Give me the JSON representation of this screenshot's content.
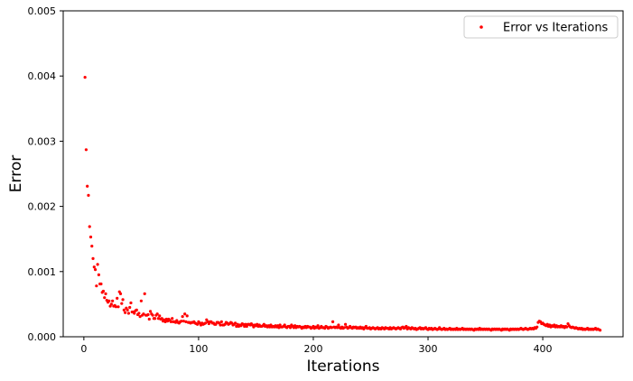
{
  "chart_data": {
    "type": "scatter",
    "xlabel": "Iterations",
    "ylabel": "Error",
    "xlim": [
      -18,
      470
    ],
    "ylim": [
      0,
      0.005
    ],
    "x_ticks": [
      0,
      100,
      200,
      300,
      400
    ],
    "x_tick_labels": [
      "0",
      "100",
      "200",
      "300",
      "400"
    ],
    "y_ticks": [
      0,
      0.001,
      0.002,
      0.003,
      0.004,
      0.005
    ],
    "y_tick_labels": [
      "0.000",
      "0.001",
      "0.002",
      "0.003",
      "0.004",
      "0.005"
    ],
    "grid": false,
    "legend_position": "top-right",
    "series": [
      {
        "name": "Error vs Iterations",
        "color": "#ff0000",
        "x": [
          1,
          2,
          3,
          4,
          5,
          6,
          7,
          8,
          9,
          10,
          11,
          12,
          13,
          14,
          15,
          16,
          17,
          18,
          19,
          20,
          21,
          22,
          23,
          24,
          25,
          26,
          27,
          28,
          29,
          30,
          31,
          32,
          33,
          34,
          35,
          36,
          37,
          38,
          39,
          40,
          41,
          42,
          43,
          44,
          45,
          46,
          47,
          48,
          49,
          50,
          51,
          52,
          53,
          54,
          55,
          56,
          57,
          58,
          59,
          60,
          61,
          62,
          63,
          64,
          65,
          66,
          67,
          68,
          69,
          70,
          71,
          72,
          73,
          74,
          75,
          76,
          77,
          78,
          79,
          80,
          81,
          82,
          83,
          84,
          85,
          86,
          87,
          88,
          89,
          90,
          91,
          92,
          93,
          94,
          95,
          96,
          97,
          98,
          99,
          100,
          101,
          102,
          103,
          104,
          105,
          106,
          107,
          108,
          109,
          110,
          111,
          112,
          113,
          114,
          115,
          116,
          117,
          118,
          119,
          120,
          121,
          122,
          123,
          124,
          125,
          126,
          127,
          128,
          129,
          130,
          131,
          132,
          133,
          134,
          135,
          136,
          137,
          138,
          139,
          140,
          141,
          142,
          143,
          144,
          145,
          146,
          147,
          148,
          149,
          150,
          151,
          152,
          153,
          154,
          155,
          156,
          157,
          158,
          159,
          160,
          161,
          162,
          163,
          164,
          165,
          166,
          167,
          168,
          169,
          170,
          171,
          172,
          173,
          174,
          175,
          176,
          177,
          178,
          179,
          180,
          181,
          182,
          183,
          184,
          185,
          186,
          187,
          188,
          189,
          190,
          191,
          192,
          193,
          194,
          195,
          196,
          197,
          198,
          199,
          200,
          201,
          202,
          203,
          204,
          205,
          206,
          207,
          208,
          209,
          210,
          211,
          212,
          213,
          214,
          215,
          216,
          217,
          218,
          219,
          220,
          221,
          222,
          223,
          224,
          225,
          226,
          227,
          228,
          229,
          230,
          231,
          232,
          233,
          234,
          235,
          236,
          237,
          238,
          239,
          240,
          241,
          242,
          243,
          244,
          245,
          246,
          247,
          248,
          249,
          250,
          251,
          252,
          253,
          254,
          255,
          256,
          257,
          258,
          259,
          260,
          261,
          262,
          263,
          264,
          265,
          266,
          267,
          268,
          269,
          270,
          271,
          272,
          273,
          274,
          275,
          276,
          277,
          278,
          279,
          280,
          281,
          282,
          283,
          284,
          285,
          286,
          287,
          288,
          289,
          290,
          291,
          292,
          293,
          294,
          295,
          296,
          297,
          298,
          299,
          300,
          301,
          302,
          303,
          304,
          305,
          306,
          307,
          308,
          309,
          310,
          311,
          312,
          313,
          314,
          315,
          316,
          317,
          318,
          319,
          320,
          321,
          322,
          323,
          324,
          325,
          326,
          327,
          328,
          329,
          330,
          331,
          332,
          333,
          334,
          335,
          336,
          337,
          338,
          339,
          340,
          341,
          342,
          343,
          344,
          345,
          346,
          347,
          348,
          349,
          350,
          351,
          352,
          353,
          354,
          355,
          356,
          357,
          358,
          359,
          360,
          361,
          362,
          363,
          364,
          365,
          366,
          367,
          368,
          369,
          370,
          371,
          372,
          373,
          374,
          375,
          376,
          377,
          378,
          379,
          380,
          381,
          382,
          383,
          384,
          385,
          386,
          387,
          388,
          389,
          390,
          391,
          392,
          393,
          394,
          395,
          396,
          397,
          398,
          399,
          400,
          401,
          402,
          403,
          404,
          405,
          406,
          407,
          408,
          409,
          410,
          411,
          412,
          413,
          414,
          415,
          416,
          417,
          418,
          419,
          420,
          421,
          422,
          423,
          424,
          425,
          426,
          427,
          428,
          429,
          430,
          431,
          432,
          433,
          434,
          435,
          436,
          437,
          438,
          439,
          440,
          441,
          442,
          443,
          444,
          445,
          446,
          447,
          448,
          449,
          450
        ],
        "y": [
          0.00398,
          0.00287,
          0.00231,
          0.00217,
          0.00169,
          0.00153,
          0.00139,
          0.0012,
          0.00107,
          0.00103,
          0.00078,
          0.00111,
          0.00095,
          0.00081,
          0.00081,
          0.00068,
          0.0007,
          0.0006,
          0.00066,
          0.00056,
          0.00053,
          0.00055,
          0.00047,
          0.0005,
          0.00055,
          0.00047,
          0.00048,
          0.00046,
          0.00059,
          0.00046,
          0.00069,
          0.00066,
          0.00051,
          0.00057,
          0.00041,
          0.00037,
          0.00044,
          0.00041,
          0.00036,
          0.00045,
          0.00052,
          0.00038,
          0.00038,
          0.00036,
          0.0004,
          0.00041,
          0.00034,
          0.00036,
          0.00031,
          0.00055,
          0.00033,
          0.00035,
          0.00066,
          0.00033,
          0.00033,
          0.00034,
          0.00027,
          0.00039,
          0.00035,
          0.00033,
          0.00028,
          0.00028,
          0.00033,
          0.00035,
          0.00028,
          0.00032,
          0.00027,
          0.00028,
          0.00024,
          0.00026,
          0.00023,
          0.00027,
          0.00024,
          0.00027,
          0.00025,
          0.00023,
          0.00028,
          0.00023,
          0.00023,
          0.00022,
          0.00025,
          0.00022,
          0.00021,
          0.00023,
          0.00024,
          0.00031,
          0.00024,
          0.00035,
          0.00023,
          0.00032,
          0.00022,
          0.00022,
          0.00021,
          0.00022,
          0.00022,
          0.00023,
          0.00021,
          0.0002,
          0.00019,
          0.00023,
          0.00021,
          0.00018,
          0.00021,
          0.00019,
          0.0002,
          0.00021,
          0.00026,
          0.00023,
          0.0002,
          0.00023,
          0.00023,
          0.00021,
          0.00021,
          0.00019,
          0.00019,
          0.00022,
          0.00022,
          0.00021,
          0.00018,
          0.00023,
          0.00018,
          0.00018,
          0.00019,
          0.00022,
          0.00021,
          0.00019,
          0.0002,
          0.00022,
          0.00021,
          0.00018,
          0.00019,
          0.00021,
          0.00016,
          0.00019,
          0.00016,
          0.00018,
          0.00017,
          0.0002,
          0.00019,
          0.00016,
          0.00019,
          0.00016,
          0.00019,
          0.00019,
          0.00018,
          0.0002,
          0.00018,
          0.00015,
          0.00018,
          0.00017,
          0.00019,
          0.00016,
          0.00018,
          0.00016,
          0.00016,
          0.00017,
          0.00019,
          0.00016,
          0.00017,
          0.00015,
          0.00017,
          0.00015,
          0.00018,
          0.00015,
          0.00016,
          0.00015,
          0.00017,
          0.00015,
          0.00017,
          0.00014,
          0.00018,
          0.00015,
          0.00015,
          0.00016,
          0.00018,
          0.00015,
          0.00014,
          0.00016,
          0.00016,
          0.00014,
          0.00018,
          0.00016,
          0.00014,
          0.00017,
          0.00014,
          0.00016,
          0.00015,
          0.00016,
          0.00015,
          0.00013,
          0.00015,
          0.00014,
          0.00016,
          0.00014,
          0.00016,
          0.00015,
          0.00015,
          0.00013,
          0.00014,
          0.00016,
          0.00013,
          0.00015,
          0.00014,
          0.00017,
          0.00013,
          0.00014,
          0.00016,
          0.00014,
          0.00014,
          0.00013,
          0.00016,
          0.00015,
          0.00013,
          0.00014,
          0.00015,
          0.00014,
          0.00023,
          0.00015,
          0.00014,
          0.00015,
          0.00014,
          0.00018,
          0.00014,
          0.00013,
          0.00015,
          0.00013,
          0.00014,
          0.00019,
          0.00015,
          0.00013,
          0.00014,
          0.00016,
          0.00014,
          0.00013,
          0.00015,
          0.00014,
          0.00015,
          0.00013,
          0.00014,
          0.00013,
          0.00015,
          0.00013,
          0.00014,
          0.00012,
          0.00014,
          0.00016,
          0.00013,
          0.00013,
          0.00014,
          0.00012,
          0.00013,
          0.00014,
          0.00013,
          0.00012,
          0.00013,
          0.00014,
          0.00012,
          0.00013,
          0.00012,
          0.00014,
          0.00013,
          0.00012,
          0.00014,
          0.00013,
          0.00013,
          0.00012,
          0.00014,
          0.00012,
          0.00013,
          0.00014,
          0.00013,
          0.00012,
          0.00013,
          0.00014,
          0.00013,
          0.00012,
          0.00014,
          0.00015,
          0.00013,
          0.00014,
          0.00016,
          0.00012,
          0.00014,
          0.00013,
          0.00012,
          0.00014,
          0.00013,
          0.00012,
          0.00013,
          0.00011,
          0.00012,
          0.00013,
          0.00014,
          0.00012,
          0.00013,
          0.00012,
          0.00013,
          0.00014,
          0.00012,
          0.00011,
          0.00013,
          0.00012,
          0.00013,
          0.00011,
          0.00012,
          0.00013,
          0.00012,
          0.00011,
          0.00012,
          0.00014,
          0.00012,
          0.00011,
          0.00012,
          0.00013,
          0.00011,
          0.00012,
          0.00011,
          0.00012,
          0.00013,
          0.00011,
          0.00012,
          0.00011,
          0.00012,
          0.00011,
          0.00013,
          0.00011,
          0.00012,
          0.00011,
          0.00012,
          0.00013,
          0.00011,
          0.00012,
          0.00011,
          0.00012,
          0.00011,
          0.00012,
          0.00011,
          0.00012,
          0.00011,
          0.0001,
          0.00012,
          0.00011,
          0.00012,
          0.00011,
          0.00013,
          0.00011,
          0.00012,
          0.00011,
          0.00012,
          0.00011,
          0.00012,
          0.00011,
          0.00012,
          0.00011,
          0.0001,
          0.00012,
          0.00011,
          0.00012,
          0.00011,
          0.00012,
          0.00011,
          0.00012,
          0.00011,
          0.0001,
          0.00012,
          0.00011,
          0.00012,
          0.00011,
          0.00012,
          0.00011,
          0.0001,
          0.00012,
          0.00011,
          0.00012,
          0.00011,
          0.00012,
          0.00011,
          0.00012,
          0.00011,
          0.00012,
          0.00013,
          0.00012,
          0.00011,
          0.00012,
          0.00013,
          0.00012,
          0.00011,
          0.00012,
          0.00013,
          0.00012,
          0.00013,
          0.00012,
          0.00014,
          0.00013,
          0.00015,
          0.00022,
          0.00024,
          0.00023,
          0.0002,
          0.00021,
          0.00019,
          0.00018,
          0.00017,
          0.00019,
          0.00016,
          0.00018,
          0.00015,
          0.00017,
          0.00016,
          0.00018,
          0.00015,
          0.00017,
          0.00015,
          0.00016,
          0.00015,
          0.00017,
          0.00015,
          0.00016,
          0.00014,
          0.00016,
          0.00015,
          0.0002,
          0.00017,
          0.00015,
          0.00014,
          0.00015,
          0.00014,
          0.00013,
          0.00014,
          0.00013,
          0.00012,
          0.00013,
          0.00012,
          0.00013,
          0.00011,
          0.00012,
          0.00011,
          0.00012,
          0.00013,
          0.00011,
          0.00012,
          0.00011,
          0.00012,
          0.00011,
          0.00012,
          0.00013,
          0.00011,
          0.00012,
          0.00011,
          0.0001
        ]
      }
    ]
  }
}
